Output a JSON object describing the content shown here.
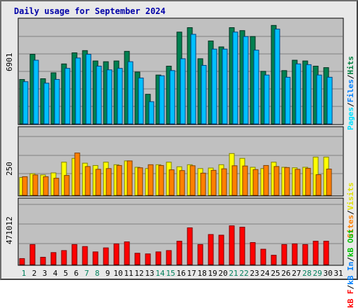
{
  "title": "Daily usage for September 2024",
  "colors": {
    "hits": "#008040",
    "files": "#00c0ff",
    "pages": "#00e0ff",
    "visits": "#ffff00",
    "sites": "#ff8000",
    "kb_in": "#0080ff",
    "kb_out": "#00c000",
    "kb_f": "#ff0000",
    "weekend_label": "#00805c"
  },
  "chart_data": [
    {
      "type": "bar",
      "panel": "hits-files-pages",
      "ymax_label": "6901",
      "legend": [
        "Pages",
        "Files",
        "Hits"
      ],
      "ylim": [
        0,
        6901
      ],
      "categories": [
        "1",
        "2",
        "3",
        "4",
        "5",
        "6",
        "7",
        "8",
        "9",
        "10",
        "11",
        "12",
        "13",
        "14",
        "15",
        "16",
        "17",
        "18",
        "19",
        "20",
        "21",
        "22",
        "23",
        "24",
        "25",
        "26",
        "27",
        "28",
        "29",
        "30",
        "31"
      ],
      "series": [
        {
          "name": "Hits",
          "values": [
            3000,
            4700,
            3050,
            3450,
            4050,
            4800,
            4950,
            4250,
            4200,
            4250,
            4900,
            3500,
            2000,
            3300,
            3900,
            6200,
            6500,
            4400,
            5600,
            5200,
            6500,
            6300,
            5900,
            3550,
            6650,
            3600,
            4300,
            4250,
            3900,
            3800,
            0
          ]
        },
        {
          "name": "Files",
          "values": [
            2850,
            4300,
            2750,
            3000,
            3750,
            4450,
            4700,
            3900,
            3650,
            3750,
            4200,
            3100,
            1500,
            3250,
            3600,
            4400,
            6050,
            3950,
            5050,
            5050,
            6200,
            5900,
            4980,
            3300,
            6400,
            3150,
            4050,
            4000,
            3300,
            3150,
            0
          ]
        }
      ]
    },
    {
      "type": "bar",
      "panel": "visits-sites",
      "ymax_label": "250",
      "legend": [
        "Sites",
        "Visits"
      ],
      "ylim": [
        0,
        250
      ],
      "categories": [
        "1",
        "2",
        "3",
        "4",
        "5",
        "6",
        "7",
        "8",
        "9",
        "10",
        "11",
        "12",
        "13",
        "14",
        "15",
        "16",
        "17",
        "18",
        "19",
        "20",
        "21",
        "22",
        "23",
        "24",
        "25",
        "26",
        "27",
        "28",
        "29",
        "30",
        "31"
      ],
      "series": [
        {
          "name": "Visits",
          "values": [
            70,
            85,
            80,
            88,
            130,
            145,
            126,
            117,
            130,
            120,
            135,
            110,
            105,
            120,
            130,
            112,
            120,
            105,
            107,
            120,
            164,
            145,
            110,
            105,
            130,
            110,
            108,
            110,
            150,
            150,
            0
          ]
        },
        {
          "name": "Sites",
          "values": [
            73,
            80,
            73,
            67,
            78,
            166,
            113,
            102,
            105,
            117,
            135,
            108,
            120,
            117,
            100,
            97,
            116,
            87,
            98,
            104,
            116,
            115,
            101,
            117,
            113,
            109,
            102,
            106,
            81,
            103,
            0
          ]
        }
      ]
    },
    {
      "type": "bar",
      "panel": "kbytes",
      "ymax_label": "471012",
      "legend": [
        "kB F",
        "kB In",
        "kB Out"
      ],
      "ylim": [
        0,
        471012
      ],
      "categories": [
        "1",
        "2",
        "3",
        "4",
        "5",
        "6",
        "7",
        "8",
        "9",
        "10",
        "11",
        "12",
        "13",
        "14",
        "15",
        "16",
        "17",
        "18",
        "19",
        "20",
        "21",
        "22",
        "23",
        "24",
        "25",
        "26",
        "27",
        "28",
        "29",
        "30",
        "31"
      ],
      "series": [
        {
          "name": "kB F",
          "values": [
            45000,
            150000,
            55000,
            90000,
            105000,
            150000,
            135000,
            95000,
            125000,
            155000,
            170000,
            85000,
            80000,
            95000,
            105000,
            175000,
            275000,
            150000,
            225000,
            220000,
            290000,
            280000,
            165000,
            115000,
            70000,
            150000,
            155000,
            150000,
            175000,
            175000,
            0
          ]
        }
      ]
    }
  ]
}
